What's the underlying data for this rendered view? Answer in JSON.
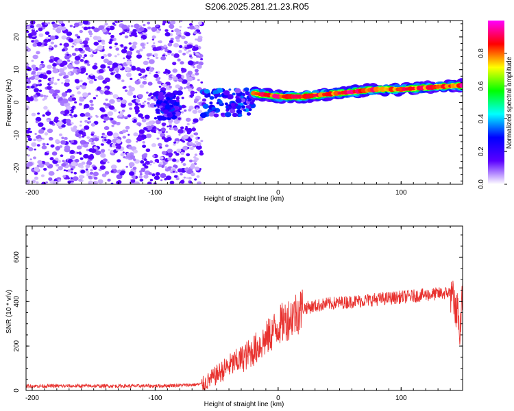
{
  "title": "S206.2025.281.21.23.R05",
  "chart_data": [
    {
      "type": "heatmap",
      "name": "spectrogram",
      "xlabel": "Height of straight line (km)",
      "ylabel": "Frequency (Hz)",
      "xlim": [
        -205,
        150
      ],
      "ylim": [
        -25,
        25
      ],
      "xticks": [
        -200,
        -100,
        0,
        100
      ],
      "yticks": [
        20,
        10,
        0,
        -10,
        -20
      ],
      "colorbar": {
        "label": "Normalized spectral amplitude",
        "range": [
          0,
          1
        ],
        "ticks": [
          "0.0",
          "0.2",
          "0.4",
          "0.6",
          "0.8"
        ],
        "colors": [
          "#ffffff",
          "#5a00ff",
          "#0000ff",
          "#00ffff",
          "#00ff00",
          "#ffff00",
          "#ff0000",
          "#ff00ff"
        ]
      },
      "features": [
        {
          "region": "noise",
          "x_range": [
            -205,
            -62
          ],
          "freq_range": [
            -25,
            25
          ],
          "amplitude": 0.1
        },
        {
          "region": "blob",
          "x_range": [
            -100,
            -80
          ],
          "freq_center": -1,
          "amplitude": 0.25
        },
        {
          "region": "blob",
          "x_range": [
            -62,
            -20
          ],
          "freq_center": 0,
          "amplitude": 0.3
        },
        {
          "region": "trace",
          "x": [
            -20,
            0,
            20,
            40,
            60,
            80,
            100,
            120,
            140,
            150
          ],
          "freq": [
            2.8,
            1.8,
            1.8,
            2.5,
            3.2,
            4.0,
            4.0,
            4.5,
            5.0,
            5.2
          ],
          "amplitude": 0.85
        }
      ]
    },
    {
      "type": "line",
      "name": "snr",
      "xlabel": "Height of straight line (km)",
      "ylabel": "SNR (10 * v/v)",
      "xlim": [
        -205,
        150
      ],
      "ylim": [
        0,
        740
      ],
      "xticks": [
        -200,
        -100,
        0,
        100
      ],
      "yticks": [
        0,
        200,
        400,
        600
      ],
      "series": [
        {
          "name": "SNR",
          "color": "#e8312e",
          "x": [
            -205,
            -150,
            -100,
            -70,
            -60,
            -50,
            -40,
            -30,
            -20,
            -10,
            0,
            10,
            20,
            40,
            60,
            80,
            100,
            120,
            140,
            148,
            150
          ],
          "y": [
            20,
            20,
            20,
            25,
            30,
            70,
            110,
            140,
            180,
            230,
            290,
            330,
            370,
            390,
            400,
            410,
            420,
            430,
            440,
            300,
            450
          ]
        }
      ]
    }
  ]
}
